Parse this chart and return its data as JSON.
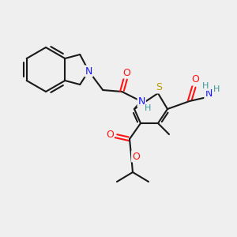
{
  "background_color": "#efefef",
  "bond_color": "#1a1a1a",
  "atom_colors": {
    "N": "#1414ff",
    "O": "#ff1414",
    "S": "#b8a000",
    "H": "#3a9898",
    "C": "#1a1a1a"
  },
  "figsize": [
    3.0,
    3.0
  ],
  "dpi": 100
}
